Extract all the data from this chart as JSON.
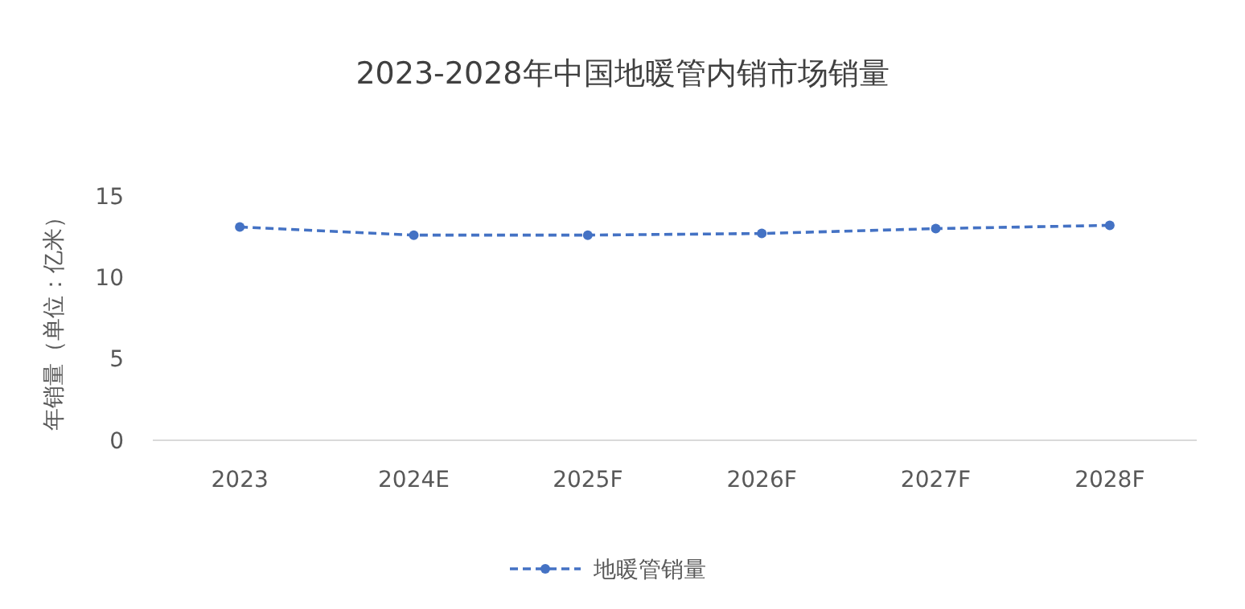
{
  "chart_data": {
    "type": "line",
    "title": "2023-2028年中国地暖管内销市场销量",
    "ylabel": "年销量（单位：亿米）",
    "categories": [
      "2023",
      "2024E",
      "2025F",
      "2026F",
      "2027F",
      "2028F"
    ],
    "series": [
      {
        "name": "地暖管销量",
        "color": "#4472c4",
        "values": [
          13.1,
          12.6,
          12.6,
          12.7,
          13.0,
          13.2
        ]
      }
    ],
    "ylim": [
      0,
      15
    ],
    "yticks": [
      0,
      5,
      10,
      15
    ],
    "grid": false,
    "legend": "bottom",
    "marker": "circle",
    "line_style": "dashed"
  }
}
